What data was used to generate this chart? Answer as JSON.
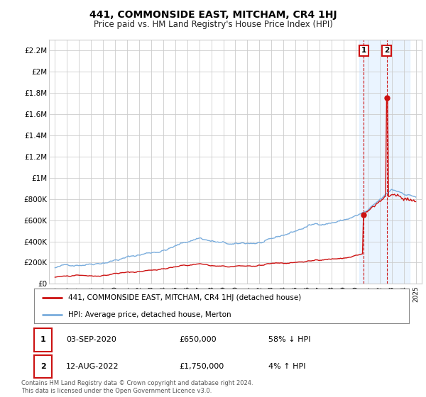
{
  "title": "441, COMMONSIDE EAST, MITCHAM, CR4 1HJ",
  "subtitle": "Price paid vs. HM Land Registry's House Price Index (HPI)",
  "ylim": [
    0,
    2300000
  ],
  "yticks": [
    0,
    200000,
    400000,
    600000,
    800000,
    1000000,
    1200000,
    1400000,
    1600000,
    1800000,
    2000000,
    2200000
  ],
  "ytick_labels": [
    "£0",
    "£200K",
    "£400K",
    "£600K",
    "£800K",
    "£1M",
    "£1.2M",
    "£1.4M",
    "£1.6M",
    "£1.8M",
    "£2M",
    "£2.2M"
  ],
  "xlim_start": 1994.5,
  "xlim_end": 2025.5,
  "xticks": [
    1995,
    1996,
    1997,
    1998,
    1999,
    2000,
    2001,
    2002,
    2003,
    2004,
    2005,
    2006,
    2007,
    2008,
    2009,
    2010,
    2011,
    2012,
    2013,
    2014,
    2015,
    2016,
    2017,
    2018,
    2019,
    2020,
    2021,
    2022,
    2023,
    2024,
    2025
  ],
  "hpi_color": "#7aaddd",
  "price_color": "#cc1111",
  "annotation_box_color": "#cc1111",
  "highlight_bg_color": "#ddeeff",
  "legend_label_red": "441, COMMONSIDE EAST, MITCHAM, CR4 1HJ (detached house)",
  "legend_label_blue": "HPI: Average price, detached house, Merton",
  "annotation1_label": "1",
  "annotation1_date": "03-SEP-2020",
  "annotation1_price": "£650,000",
  "annotation1_hpi": "58% ↓ HPI",
  "annotation2_label": "2",
  "annotation2_date": "12-AUG-2022",
  "annotation2_price": "£1,750,000",
  "annotation2_hpi": "4% ↑ HPI",
  "copyright_text": "Contains HM Land Registry data © Crown copyright and database right 2024.\nThis data is licensed under the Open Government Licence v3.0.",
  "marker1_x": 2020.67,
  "marker1_y": 650000,
  "marker2_x": 2022.6,
  "marker2_y": 1750000,
  "highlight_xstart": 2020.3,
  "highlight_xend": 2024.5,
  "figure_bg": "#ffffff",
  "plot_bg": "#ffffff",
  "grid_color": "#cccccc"
}
